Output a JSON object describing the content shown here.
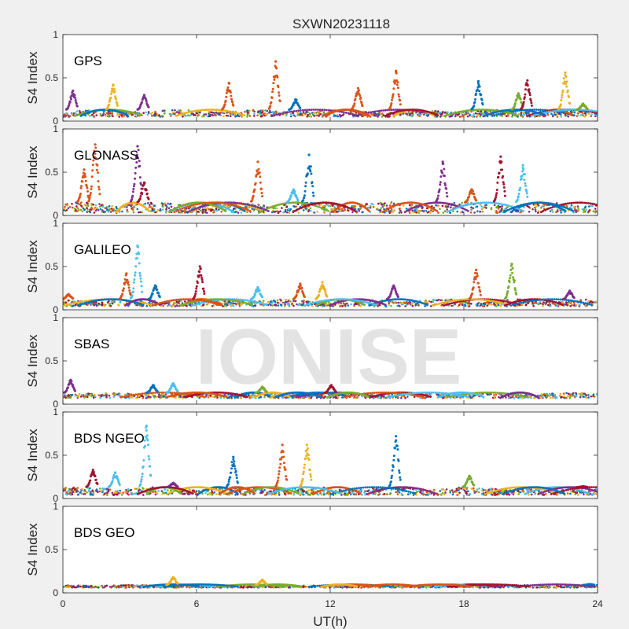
{
  "chart_data": {
    "type": "scatter",
    "title": "SXWN20231118",
    "xlabel": "UT(h)",
    "ylabel": "S4 Index",
    "watermark": "IONISE",
    "xlim": [
      0,
      24
    ],
    "ylim": [
      0,
      1
    ],
    "x_ticks": [
      "0",
      "6",
      "12",
      "18",
      "24"
    ],
    "y_ticks": [
      "0",
      "0.5",
      "1"
    ],
    "colors": [
      "#0072BD",
      "#D95319",
      "#EDB120",
      "#7E2F8E",
      "#77AC30",
      "#4DBEEE",
      "#A2142F"
    ],
    "grid": false,
    "panels": [
      {
        "label": "GPS",
        "baseline": [
          0.05,
          0.13
        ],
        "bursts": [
          {
            "t": 0.4,
            "peak": 0.35,
            "c": 3
          },
          {
            "t": 2.2,
            "peak": 0.42,
            "c": 2
          },
          {
            "t": 3.6,
            "peak": 0.3,
            "c": 3
          },
          {
            "t": 7.4,
            "peak": 0.44,
            "c": 1
          },
          {
            "t": 9.5,
            "peak": 0.69,
            "c": 1
          },
          {
            "t": 10.4,
            "peak": 0.25,
            "c": 0
          },
          {
            "t": 13.2,
            "peak": 0.38,
            "c": 1
          },
          {
            "t": 14.9,
            "peak": 0.58,
            "c": 1
          },
          {
            "t": 18.6,
            "peak": 0.46,
            "c": 0
          },
          {
            "t": 20.4,
            "peak": 0.32,
            "c": 4
          },
          {
            "t": 20.8,
            "peak": 0.47,
            "c": 6
          },
          {
            "t": 22.5,
            "peak": 0.56,
            "c": 2
          },
          {
            "t": 23.3,
            "peak": 0.2,
            "c": 4
          }
        ]
      },
      {
        "label": "GLONASS",
        "baseline": [
          0.03,
          0.15
        ],
        "bursts": [
          {
            "t": 0.9,
            "peak": 0.53,
            "c": 1
          },
          {
            "t": 1.4,
            "peak": 0.82,
            "c": 1
          },
          {
            "t": 3.3,
            "peak": 0.8,
            "c": 3
          },
          {
            "t": 3.6,
            "peak": 0.38,
            "c": 6
          },
          {
            "t": 8.7,
            "peak": 0.62,
            "c": 1
          },
          {
            "t": 10.3,
            "peak": 0.3,
            "c": 5
          },
          {
            "t": 11.0,
            "peak": 0.7,
            "c": 0
          },
          {
            "t": 17.0,
            "peak": 0.62,
            "c": 3
          },
          {
            "t": 18.3,
            "peak": 0.3,
            "c": 1
          },
          {
            "t": 19.6,
            "peak": 0.68,
            "c": 6
          },
          {
            "t": 20.6,
            "peak": 0.58,
            "c": 5
          }
        ]
      },
      {
        "label": "GALILEO",
        "baseline": [
          0.04,
          0.12
        ],
        "bursts": [
          {
            "t": 0.2,
            "peak": 0.18,
            "c": 1
          },
          {
            "t": 2.8,
            "peak": 0.42,
            "c": 1
          },
          {
            "t": 3.3,
            "peak": 0.74,
            "c": 5
          },
          {
            "t": 4.1,
            "peak": 0.28,
            "c": 0
          },
          {
            "t": 6.1,
            "peak": 0.5,
            "c": 6
          },
          {
            "t": 8.7,
            "peak": 0.26,
            "c": 5
          },
          {
            "t": 10.6,
            "peak": 0.3,
            "c": 1
          },
          {
            "t": 11.6,
            "peak": 0.32,
            "c": 2
          },
          {
            "t": 14.8,
            "peak": 0.28,
            "c": 3
          },
          {
            "t": 18.5,
            "peak": 0.46,
            "c": 1
          },
          {
            "t": 20.1,
            "peak": 0.53,
            "c": 4
          },
          {
            "t": 22.7,
            "peak": 0.22,
            "c": 3
          }
        ]
      },
      {
        "label": "SBAS",
        "baseline": [
          0.07,
          0.13
        ],
        "bursts": [
          {
            "t": 0.3,
            "peak": 0.28,
            "c": 3
          },
          {
            "t": 4.0,
            "peak": 0.22,
            "c": 0
          },
          {
            "t": 4.9,
            "peak": 0.24,
            "c": 5
          },
          {
            "t": 8.9,
            "peak": 0.2,
            "c": 4
          },
          {
            "t": 12.0,
            "peak": 0.22,
            "c": 6
          }
        ]
      },
      {
        "label": "BDS NGEO",
        "baseline": [
          0.04,
          0.13
        ],
        "bursts": [
          {
            "t": 1.3,
            "peak": 0.33,
            "c": 6
          },
          {
            "t": 2.3,
            "peak": 0.3,
            "c": 5
          },
          {
            "t": 3.7,
            "peak": 0.84,
            "c": 5
          },
          {
            "t": 4.9,
            "peak": 0.18,
            "c": 3
          },
          {
            "t": 7.6,
            "peak": 0.48,
            "c": 0
          },
          {
            "t": 9.8,
            "peak": 0.62,
            "c": 1
          },
          {
            "t": 10.9,
            "peak": 0.62,
            "c": 2
          },
          {
            "t": 14.9,
            "peak": 0.72,
            "c": 0
          },
          {
            "t": 18.2,
            "peak": 0.26,
            "c": 4
          },
          {
            "t": 23.3,
            "peak": 0.14,
            "c": 6
          }
        ]
      },
      {
        "label": "BDS GEO",
        "baseline": [
          0.06,
          0.09
        ],
        "bursts": [
          {
            "t": 4.9,
            "peak": 0.18,
            "c": 2
          },
          {
            "t": 8.9,
            "peak": 0.15,
            "c": 2
          },
          {
            "t": 23.6,
            "peak": 0.1,
            "c": 0
          }
        ]
      }
    ]
  }
}
